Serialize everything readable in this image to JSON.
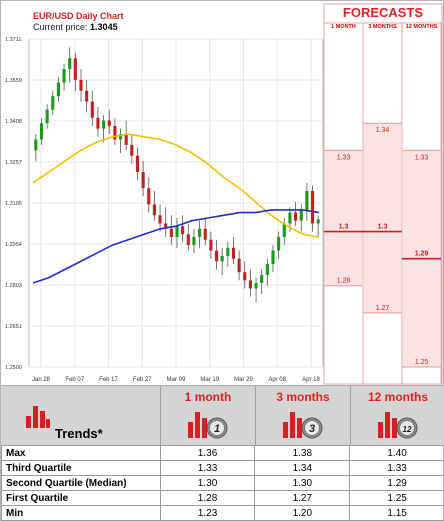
{
  "chart_data": {
    "type": "candlestick",
    "title": "EUR/USD Daily Chart",
    "current_price_label": "Current price:",
    "current_price": "1.3045",
    "y_ticks": [
      "1.3711",
      "1.3559",
      "1.3408",
      "1.3257",
      "1.3105",
      "1.2954",
      "1.2803",
      "1.2651",
      "1.2500"
    ],
    "y_range": [
      1.25,
      1.3711
    ],
    "x_ticks": [
      "Jan 28",
      "Feb 07",
      "Feb 17",
      "Feb 27",
      "Mar 09",
      "Mar 19",
      "Mar 29",
      "Apr 08",
      "Apr 18"
    ],
    "candles": [
      [
        1.33,
        1.336,
        1.326,
        1.334
      ],
      [
        1.334,
        1.342,
        1.332,
        1.34
      ],
      [
        1.34,
        1.347,
        1.338,
        1.345
      ],
      [
        1.345,
        1.352,
        1.343,
        1.35
      ],
      [
        1.35,
        1.357,
        1.348,
        1.355
      ],
      [
        1.355,
        1.362,
        1.352,
        1.36
      ],
      [
        1.36,
        1.368,
        1.355,
        1.364
      ],
      [
        1.364,
        1.366,
        1.352,
        1.356
      ],
      [
        1.356,
        1.36,
        1.348,
        1.352
      ],
      [
        1.352,
        1.356,
        1.344,
        1.348
      ],
      [
        1.348,
        1.352,
        1.339,
        1.342
      ],
      [
        1.342,
        1.346,
        1.335,
        1.338
      ],
      [
        1.338,
        1.343,
        1.333,
        1.341
      ],
      [
        1.341,
        1.345,
        1.336,
        1.339
      ],
      [
        1.339,
        1.342,
        1.332,
        1.334
      ],
      [
        1.334,
        1.338,
        1.329,
        1.336
      ],
      [
        1.336,
        1.341,
        1.33,
        1.332
      ],
      [
        1.332,
        1.336,
        1.325,
        1.328
      ],
      [
        1.328,
        1.331,
        1.319,
        1.322
      ],
      [
        1.322,
        1.326,
        1.313,
        1.316
      ],
      [
        1.316,
        1.32,
        1.307,
        1.31
      ],
      [
        1.31,
        1.315,
        1.304,
        1.306
      ],
      [
        1.306,
        1.31,
        1.3,
        1.303
      ],
      [
        1.303,
        1.309,
        1.298,
        1.301
      ],
      [
        1.301,
        1.306,
        1.295,
        1.298
      ],
      [
        1.298,
        1.305,
        1.294,
        1.302
      ],
      [
        1.302,
        1.306,
        1.296,
        1.299
      ],
      [
        1.299,
        1.303,
        1.293,
        1.295
      ],
      [
        1.295,
        1.301,
        1.292,
        1.298
      ],
      [
        1.298,
        1.304,
        1.294,
        1.301
      ],
      [
        1.301,
        1.305,
        1.295,
        1.297
      ],
      [
        1.297,
        1.3,
        1.29,
        1.293
      ],
      [
        1.293,
        1.297,
        1.286,
        1.289
      ],
      [
        1.289,
        1.294,
        1.284,
        1.291
      ],
      [
        1.291,
        1.296,
        1.287,
        1.294
      ],
      [
        1.294,
        1.298,
        1.288,
        1.29
      ],
      [
        1.29,
        1.293,
        1.282,
        1.285
      ],
      [
        1.285,
        1.289,
        1.279,
        1.282
      ],
      [
        1.282,
        1.286,
        1.276,
        1.279
      ],
      [
        1.279,
        1.283,
        1.274,
        1.281
      ],
      [
        1.281,
        1.286,
        1.277,
        1.284
      ],
      [
        1.284,
        1.29,
        1.28,
        1.288
      ],
      [
        1.288,
        1.295,
        1.285,
        1.293
      ],
      [
        1.293,
        1.3,
        1.29,
        1.298
      ],
      [
        1.298,
        1.305,
        1.295,
        1.303
      ],
      [
        1.303,
        1.309,
        1.3,
        1.307
      ],
      [
        1.307,
        1.311,
        1.302,
        1.304
      ],
      [
        1.304,
        1.31,
        1.3,
        1.308
      ],
      [
        1.308,
        1.318,
        1.304,
        1.315
      ],
      [
        1.315,
        1.317,
        1.3,
        1.303
      ],
      [
        1.303,
        1.306,
        1.298,
        1.3045
      ]
    ],
    "moving_averages": [
      {
        "color": "#f0c000",
        "points": [
          1.318,
          1.322,
          1.326,
          1.33,
          1.333,
          1.335,
          1.336,
          1.335,
          1.334,
          1.332,
          1.329,
          1.325,
          1.32,
          1.316,
          1.311,
          1.306,
          1.302,
          1.299,
          1.298
        ]
      },
      {
        "color": "#1c2fcf",
        "points": [
          1.281,
          1.283,
          1.286,
          1.289,
          1.292,
          1.295,
          1.297,
          1.299,
          1.301,
          1.302,
          1.304,
          1.305,
          1.306,
          1.307,
          1.307,
          1.308,
          1.308,
          1.308,
          1.307
        ]
      }
    ],
    "colors": {
      "up": "#1a9a1a",
      "down": "#c81e1e"
    }
  },
  "forecast_panel": {
    "header": "FORECASTS",
    "columns": [
      {
        "label": "1 MONTH",
        "max": 1.33,
        "mid": 1.3,
        "min": 1.28,
        "max_label": "1.33",
        "mid_label": "1.3",
        "min_label": "1.28"
      },
      {
        "label": "3 MONTHS",
        "max": 1.34,
        "mid": 1.3,
        "min": 1.27,
        "max_label": "1.34",
        "mid_label": "1.3",
        "min_label": "1.27"
      },
      {
        "label": "12 MONTHS",
        "max": 1.33,
        "mid": 1.29,
        "min": 1.25,
        "max_label": "1.33",
        "mid_label": "1.29",
        "min_label": "1.25"
      }
    ]
  },
  "trends": {
    "label": "Trends",
    "asterisk": "*",
    "columns": [
      {
        "title": "1 month",
        "badge": "1"
      },
      {
        "title": "3 months",
        "badge": "3"
      },
      {
        "title": "12 months",
        "badge": "12"
      }
    ]
  },
  "table": {
    "rows": [
      {
        "label": "Max",
        "values": [
          "1.36",
          "1.38",
          "1.40"
        ]
      },
      {
        "label": "Third Quartile",
        "values": [
          "1.33",
          "1.34",
          "1.33"
        ]
      },
      {
        "label": "Second Quartile (Median)",
        "values": [
          "1.30",
          "1.30",
          "1.29"
        ]
      },
      {
        "label": "First Quartile",
        "values": [
          "1.28",
          "1.27",
          "1.25"
        ]
      },
      {
        "label": "Min",
        "values": [
          "1.23",
          "1.20",
          "1.15"
        ]
      }
    ]
  }
}
